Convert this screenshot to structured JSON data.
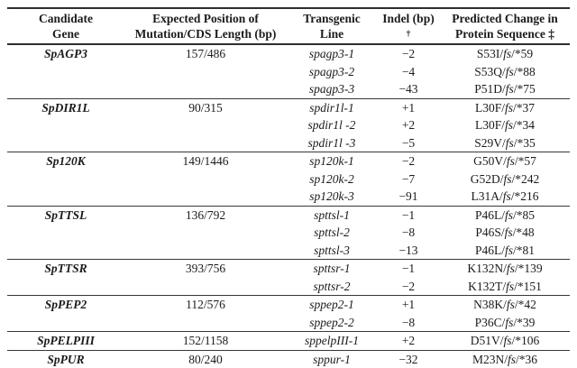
{
  "colors": {
    "background": "#ffffff",
    "text": "#1b1b1b",
    "rule": "#2e2e2e"
  },
  "table": {
    "headers": [
      {
        "line1": "Candidate",
        "line2": "Gene"
      },
      {
        "line1": "Expected Position of",
        "line2": "Mutation/CDS Length (bp)"
      },
      {
        "line1": "Transgenic",
        "line2": "Line"
      },
      {
        "line1": "Indel (bp)",
        "line2": "†"
      },
      {
        "line1": "Predicted Change in",
        "line2": "Protein Sequence ‡"
      }
    ],
    "groups": [
      {
        "gene": "SpAGP3",
        "expected_position": "157/486",
        "rows": [
          {
            "line": "spagp3-1",
            "indel": "−2",
            "change": "S53I/fs/*59"
          },
          {
            "line": "spagp3-2",
            "indel": "−4",
            "change": "S53Q/fs/*88"
          },
          {
            "line": "spagp3-3",
            "indel": "−43",
            "change": "P51D/fs/*75"
          }
        ]
      },
      {
        "gene": "SpDIR1L",
        "expected_position": "90/315",
        "rows": [
          {
            "line": "spdir1l-1",
            "indel": "+1",
            "change": "L30F/fs/*37"
          },
          {
            "line": "spdir1l -2",
            "indel": "+2",
            "change": "L30F/fs/*34"
          },
          {
            "line": "spdir1l -3",
            "indel": "−5",
            "change": "S29V/fs/*35"
          }
        ]
      },
      {
        "gene": "Sp120K",
        "expected_position": "149/1446",
        "rows": [
          {
            "line": "sp120k-1",
            "indel": "−2",
            "change": "G50V/fs/*57"
          },
          {
            "line": "sp120k-2",
            "indel": "−7",
            "change": "G52D/fs/*242"
          },
          {
            "line": "sp120k-3",
            "indel": "−91",
            "change": "L31A/fs/*216"
          }
        ]
      },
      {
        "gene": "SpTTSL",
        "expected_position": "136/792",
        "rows": [
          {
            "line": "spttsl-1",
            "indel": "−1",
            "change": "P46L/fs/*85"
          },
          {
            "line": "spttsl-2",
            "indel": "−8",
            "change": "P46S/fs/*48"
          },
          {
            "line": "spttsl-3",
            "indel": "−13",
            "change": "P46L/fs/*81"
          }
        ]
      },
      {
        "gene": "SpTTSR",
        "expected_position": "393/756",
        "rows": [
          {
            "line": "spttsr-1",
            "indel": "−1",
            "change": "K132N/fs/*139"
          },
          {
            "line": "spttsr-2",
            "indel": "−2",
            "change": "K132T/fs/*151"
          }
        ]
      },
      {
        "gene": "SpPEP2",
        "expected_position": "112/576",
        "rows": [
          {
            "line": "sppep2-1",
            "indel": "+1",
            "change": "N38K/fs/*42"
          },
          {
            "line": "sppep2-2",
            "indel": "−8",
            "change": "P36C/fs/*39"
          }
        ]
      },
      {
        "gene": "SpPELPIII",
        "expected_position": "152/1158",
        "rows": [
          {
            "line": "sppelpIII-1",
            "indel": "+2",
            "change": "D51V/fs/*106"
          }
        ]
      },
      {
        "gene": "SpPUR",
        "expected_position": "80/240",
        "rows": [
          {
            "line": "sppur-1",
            "indel": "−32",
            "change": "M23N/fs/*36"
          }
        ]
      }
    ]
  }
}
